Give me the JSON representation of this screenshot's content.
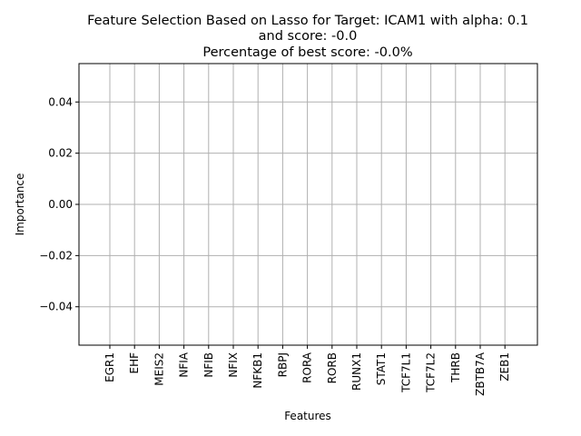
{
  "chart_data": {
    "type": "bar",
    "title_lines": [
      "Feature Selection Based on Lasso for Target: ICAM1 with alpha: 0.1",
      "and score: -0.0",
      "Percentage of best score: -0.0%"
    ],
    "xlabel": "Features",
    "ylabel": "Importance",
    "categories": [
      "EGR1",
      "EHF",
      "MEIS2",
      "NFIA",
      "NFIB",
      "NFIX",
      "NFKB1",
      "RBPJ",
      "RORA",
      "RORB",
      "RUNX1",
      "STAT1",
      "TCF7L1",
      "TCF7L2",
      "THRB",
      "ZBTB7A",
      "ZEB1"
    ],
    "values": [
      0,
      0,
      0,
      0,
      0,
      0,
      0,
      0,
      0,
      0,
      0,
      0,
      0,
      0,
      0,
      0,
      0
    ],
    "ylim": [
      -0.055,
      0.055
    ],
    "yticks": [
      -0.04,
      -0.02,
      0.0,
      0.02,
      0.04
    ],
    "ytick_labels": [
      "−0.04",
      "−0.02",
      "0.00",
      "0.02",
      "0.04"
    ],
    "grid": true,
    "grid_color": "#b0b0b0",
    "bar_color": "#1f77b4"
  }
}
